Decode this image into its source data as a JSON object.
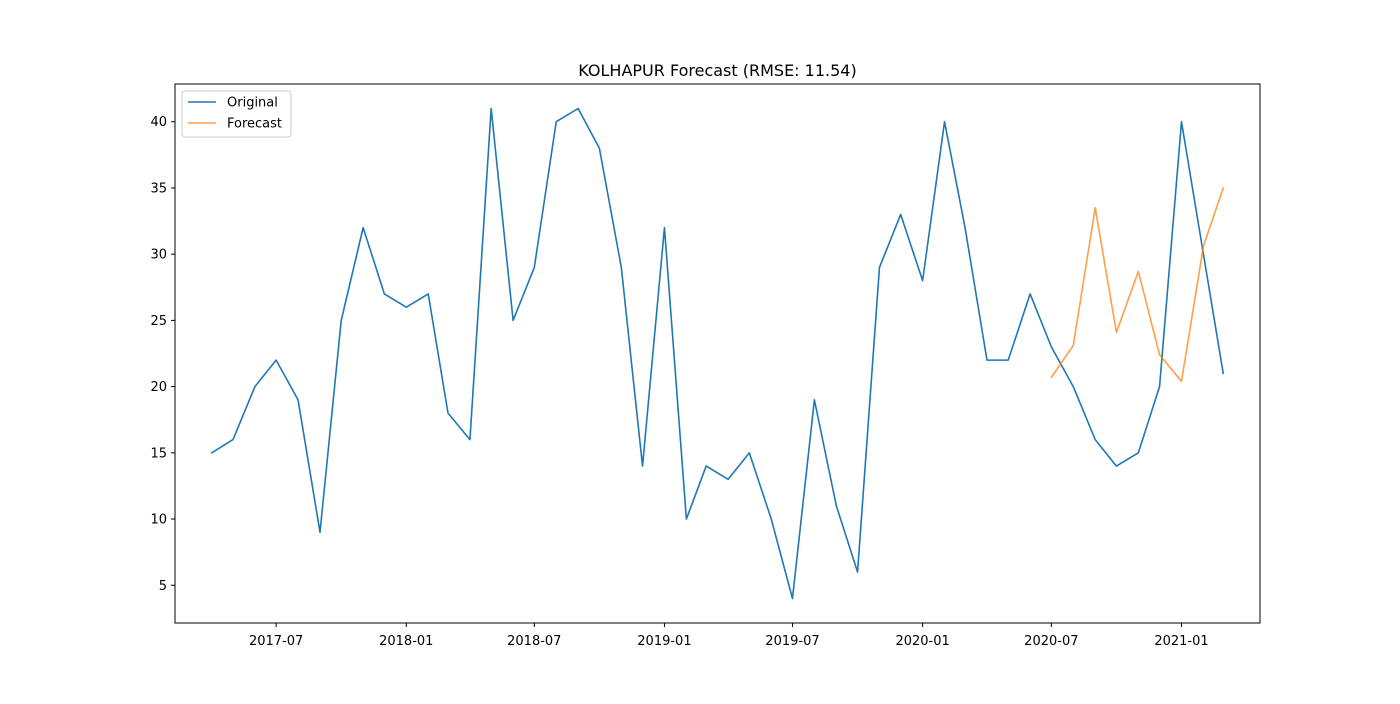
{
  "chart_data": {
    "type": "line",
    "title": "KOLHAPUR Forecast (RMSE: 11.54)",
    "xlabel": "",
    "ylabel": "",
    "xlim": [
      "2017-02-08",
      "2021-04-22"
    ],
    "ylim": [
      2.15,
      42.85
    ],
    "grid": false,
    "legend": {
      "placement": "top-left",
      "entries": [
        "Original",
        "Forecast"
      ]
    },
    "x_ticks": [
      {
        "value": "2017-07-01",
        "label": "2017-07"
      },
      {
        "value": "2018-01-01",
        "label": "2018-01"
      },
      {
        "value": "2018-07-01",
        "label": "2018-07"
      },
      {
        "value": "2019-01-01",
        "label": "2019-01"
      },
      {
        "value": "2019-07-01",
        "label": "2019-07"
      },
      {
        "value": "2020-01-01",
        "label": "2020-01"
      },
      {
        "value": "2020-07-01",
        "label": "2020-07"
      },
      {
        "value": "2021-01-01",
        "label": "2021-01"
      }
    ],
    "y_ticks": [
      5,
      10,
      15,
      20,
      25,
      30,
      35,
      40
    ],
    "series": [
      {
        "name": "Original",
        "color": "#1f77b4",
        "x": [
          "2017-04-01",
          "2017-05-01",
          "2017-06-01",
          "2017-07-01",
          "2017-08-01",
          "2017-09-01",
          "2017-10-01",
          "2017-11-01",
          "2017-12-01",
          "2018-01-01",
          "2018-02-01",
          "2018-03-01",
          "2018-04-01",
          "2018-05-01",
          "2018-06-01",
          "2018-07-01",
          "2018-08-01",
          "2018-09-01",
          "2018-10-01",
          "2018-11-01",
          "2018-12-01",
          "2019-01-01",
          "2019-02-01",
          "2019-03-01",
          "2019-04-01",
          "2019-05-01",
          "2019-06-01",
          "2019-07-01",
          "2019-08-01",
          "2019-09-01",
          "2019-10-01",
          "2019-11-01",
          "2019-12-01",
          "2020-01-01",
          "2020-02-01",
          "2020-03-01",
          "2020-04-01",
          "2020-05-01",
          "2020-06-01",
          "2020-07-01",
          "2020-08-01",
          "2020-09-01",
          "2020-10-01",
          "2020-11-01",
          "2020-12-01",
          "2021-01-01",
          "2021-02-01",
          "2021-03-01"
        ],
        "values": [
          15,
          16,
          20,
          22,
          19,
          9,
          25,
          32,
          27,
          26,
          27,
          18,
          16,
          41,
          25,
          29,
          40,
          41,
          38,
          29,
          14,
          32,
          10,
          14,
          13,
          15,
          10,
          4,
          19,
          11,
          6,
          29,
          33,
          28,
          40,
          32,
          22,
          22,
          27,
          23,
          20,
          16,
          14,
          15,
          20,
          40,
          30,
          21
        ]
      },
      {
        "name": "Forecast",
        "color": "#ff7f0e",
        "x": [
          "2020-07-01",
          "2020-08-01",
          "2020-09-01",
          "2020-10-01",
          "2020-11-01",
          "2020-12-01",
          "2021-01-01",
          "2021-02-01",
          "2021-03-01"
        ],
        "values": [
          20.7,
          23.1,
          33.5,
          24.1,
          28.7,
          22.4,
          20.4,
          30.6,
          35.0
        ]
      }
    ]
  }
}
